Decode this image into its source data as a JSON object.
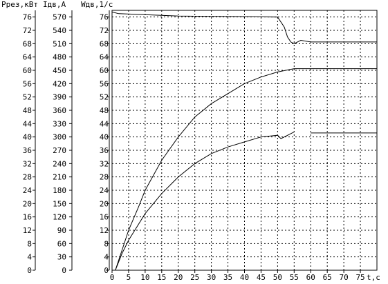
{
  "chart_data": {
    "type": "line",
    "axes_headers": {
      "p_header": "Ррез,кВт",
      "i_header": "Iдв,А",
      "w_header": "Wдв,1/с",
      "x_label": "t,с"
    },
    "p_ticks": [
      "0",
      "4",
      "8",
      "12",
      "16",
      "20",
      "24",
      "28",
      "32",
      "36",
      "40",
      "44",
      "48",
      "52",
      "56",
      "60",
      "64",
      "68",
      "72",
      "76"
    ],
    "i_ticks": [
      "0",
      "30",
      "60",
      "90",
      "120",
      "150",
      "180",
      "210",
      "240",
      "270",
      "300",
      "330",
      "360",
      "390",
      "420",
      "450",
      "480",
      "510",
      "540",
      "570"
    ],
    "w_ticks": [
      "0",
      "4",
      "8",
      "12",
      "16",
      "20",
      "24",
      "28",
      "32",
      "36",
      "40",
      "44",
      "48",
      "52",
      "56",
      "60",
      "64",
      "68",
      "72",
      "76"
    ],
    "x_ticks": [
      "0",
      "5",
      "10",
      "15",
      "20",
      "25",
      "30",
      "35",
      "40",
      "45",
      "50",
      "55",
      "60",
      "65",
      "70",
      "75"
    ],
    "xlim": [
      0,
      80
    ],
    "ylim": [
      0,
      78
    ],
    "grid": true,
    "series": [
      {
        "x": [
          0,
          2,
          20,
          50,
          52,
          53,
          54,
          55,
          57,
          60,
          80
        ],
        "y": [
          77.5,
          77,
          76.3,
          76,
          73,
          70,
          68.5,
          68,
          69,
          68.5,
          68.5
        ]
      },
      {
        "x": [
          1,
          3,
          5,
          8,
          10,
          15,
          20,
          25,
          30,
          35,
          40,
          45,
          50,
          55,
          80
        ],
        "y": [
          0,
          6,
          12,
          19,
          24,
          33,
          40,
          46,
          50,
          53,
          56,
          58,
          59.5,
          60.5,
          60.5
        ]
      },
      {
        "x": [
          1,
          3,
          5,
          10,
          15,
          20,
          25,
          30,
          35,
          40,
          45,
          50,
          51,
          52,
          55
        ],
        "y": [
          0,
          5,
          9,
          17,
          23,
          28,
          32,
          35,
          37,
          38.5,
          40,
          40.5,
          39.5,
          40,
          41.5
        ]
      },
      {
        "x": [
          60,
          80
        ],
        "y": [
          41.2,
          41.2
        ]
      }
    ]
  }
}
